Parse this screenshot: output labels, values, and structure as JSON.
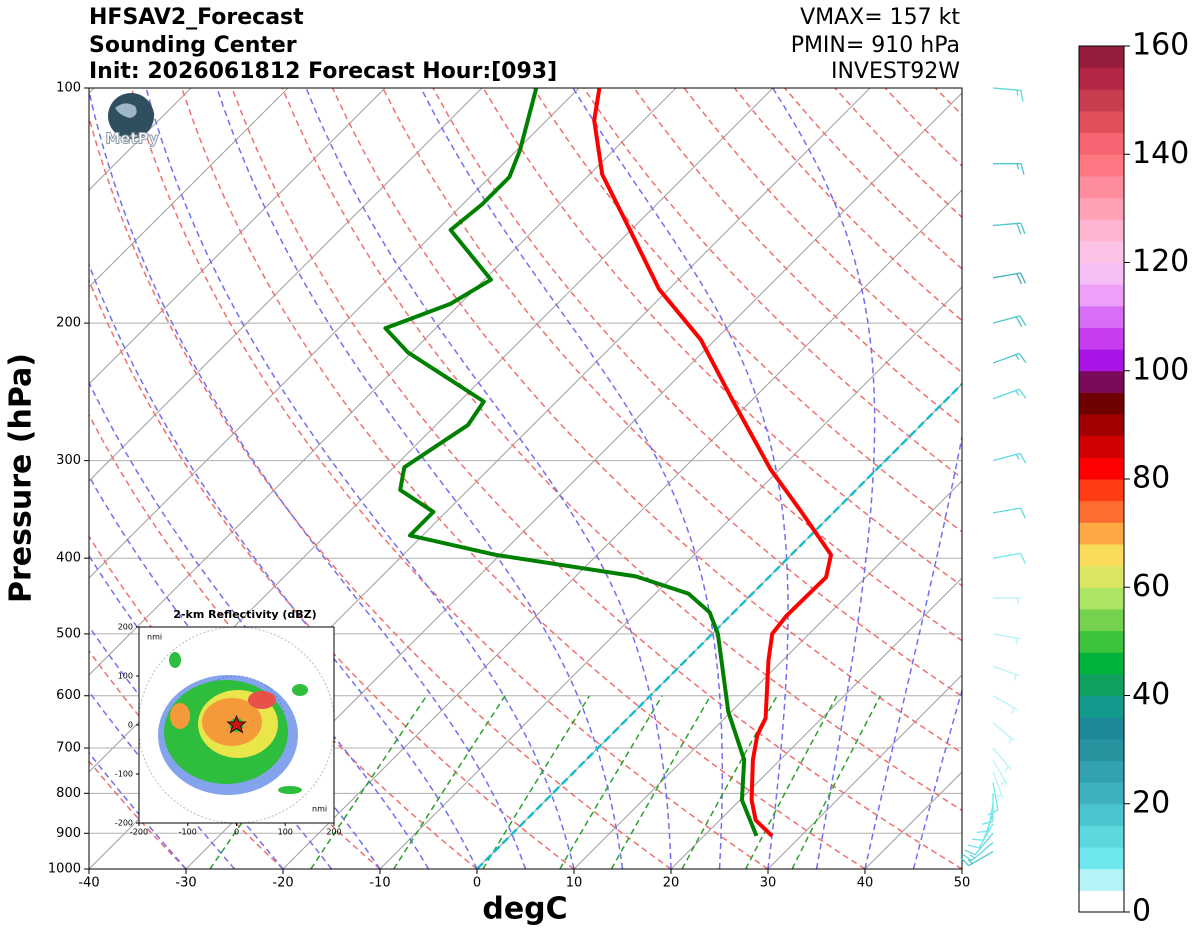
{
  "chart_data": {
    "type": "skewt",
    "title": [
      "HFSAV2_Forecast",
      "Sounding Center",
      "Init: 2026061812 Forecast Hour:[093]"
    ],
    "annotations": [
      "VMAX= 157 kt",
      "PMIN= 910 hPa",
      "INVEST92W"
    ],
    "annotation_color": "#a52a2a",
    "xlabel": "degC",
    "ylabel": "Pressure (hPa)",
    "logo": "MetPy",
    "xlim": [
      -40,
      50
    ],
    "ylim": [
      1000,
      100
    ],
    "log_y": true,
    "skew": 45,
    "xticks": [
      -40,
      -30,
      -20,
      -10,
      0,
      10,
      20,
      30,
      40,
      50
    ],
    "yticks": [
      100,
      200,
      300,
      400,
      500,
      600,
      700,
      800,
      900,
      1000
    ],
    "grid": true,
    "series": [
      {
        "color": "#ff0000",
        "pressure": [
          907,
          866,
          816,
          725,
          674,
          641,
          540,
          500,
          474,
          423,
          396,
          347,
          308,
          251,
          210,
          181,
          152,
          129,
          110,
          100
        ],
        "values": [
          27.0,
          23.7,
          21.2,
          17.2,
          15.1,
          14.2,
          8.5,
          6.2,
          5.8,
          5.9,
          4.1,
          -3.7,
          -10.9,
          -22.0,
          -31.5,
          -41.0,
          -50.1,
          -58.7,
          -65.1,
          -67.9
        ]
      },
      {
        "color": "#008000",
        "pressure": [
          907,
          816,
          725,
          629,
          500,
          469,
          444,
          422,
          396,
          374,
          349,
          327,
          306,
          270,
          252,
          218,
          203,
          189,
          176,
          152,
          141,
          130,
          120,
          100
        ],
        "values": [
          25.4,
          20.2,
          16.3,
          9.7,
          0.6,
          -2.5,
          -6.6,
          -13.8,
          -30.5,
          -41.3,
          -41.3,
          -47.0,
          -48.9,
          -46.7,
          -47.5,
          -60.4,
          -65.2,
          -61.0,
          -59.3,
          -68.6,
          -68.0,
          -68.0,
          -69.7,
          -74.4
        ]
      }
    ],
    "isotherms": [
      -130,
      -120,
      -110,
      -100,
      -90,
      -80,
      -70,
      -60,
      -50,
      -40,
      -30,
      -20,
      -10,
      0,
      10,
      20,
      30,
      40,
      50
    ],
    "isotherm_color": "#a0a0a0",
    "highlight_isotherm": 0,
    "highlight_color": "#17becf",
    "dry_adiabats": [
      -30,
      -20,
      -10,
      0,
      10,
      20,
      30,
      40,
      50,
      60,
      70,
      80,
      90,
      100,
      110,
      120,
      130,
      140,
      150,
      160,
      170,
      180,
      190,
      200
    ],
    "dry_adiabat_color": "#f07070",
    "moist_adiabats": [
      -30,
      -25,
      -20,
      -15,
      -10,
      -5,
      0,
      5,
      10,
      15,
      20,
      25,
      30,
      35,
      40,
      45
    ],
    "moist_adiabat_color": "#7070f0",
    "mixing_ratios": [
      0.0004,
      0.001,
      0.002,
      0.004,
      0.007,
      0.01,
      0.016,
      0.024,
      0.032
    ],
    "mixing_ratio_top": 600,
    "mixing_ratio_color": "#2ca02c",
    "winds": {
      "pressure": [
        950,
        925,
        900,
        875,
        850,
        825,
        800,
        775,
        750,
        725,
        700,
        650,
        600,
        550,
        500,
        450,
        400,
        350,
        300,
        250,
        225,
        200,
        175,
        150,
        125,
        100
      ],
      "speed": [
        16,
        14,
        12,
        10,
        9,
        9,
        8,
        8,
        7,
        7,
        6,
        5,
        5,
        4,
        5,
        6,
        9,
        12,
        14,
        15,
        17,
        19,
        20,
        19,
        16,
        14
      ],
      "direction": [
        240,
        230,
        220,
        210,
        200,
        190,
        180,
        170,
        160,
        150,
        140,
        130,
        120,
        110,
        100,
        90,
        80,
        80,
        75,
        70,
        70,
        75,
        80,
        85,
        90,
        95
      ]
    },
    "colorbar": {
      "lim": [
        0,
        160
      ],
      "ticks": [
        0,
        20,
        40,
        60,
        80,
        100,
        120,
        140,
        160
      ],
      "levels": [
        0,
        4,
        8,
        12,
        16,
        20,
        24,
        28,
        32,
        36,
        40,
        44,
        48,
        52,
        56,
        60,
        64,
        68,
        72,
        76,
        80,
        84,
        88,
        92,
        96,
        100,
        104,
        108,
        112,
        116,
        120,
        124,
        128,
        132,
        136,
        140,
        144,
        148,
        152,
        156,
        160
      ],
      "colors": [
        "#ffffff",
        "#b4f4f6",
        "#6ee8ee",
        "#5cd8de",
        "#4cc6ce",
        "#3eb2bc",
        "#32a2ae",
        "#26949e",
        "#1c8898",
        "#149a8c",
        "#10a060",
        "#00b43c",
        "#3cc43c",
        "#74d24e",
        "#ace464",
        "#dce664",
        "#f8dc5a",
        "#fca844",
        "#fc6e30",
        "#ff3c14",
        "#ff0000",
        "#d20000",
        "#a00000",
        "#700000",
        "#7a0a5a",
        "#aa14e6",
        "#c83cf0",
        "#d86ef6",
        "#eea0f8",
        "#f5bef5",
        "#fcc3e6",
        "#ffb4d2",
        "#ffa0b4",
        "#ff8c9c",
        "#ff7882",
        "#f56470",
        "#e1505a",
        "#c83c50",
        "#b42846",
        "#961e3c"
      ]
    },
    "inset": {
      "title": "2-km Reflectivity (dBZ)",
      "unit": "nmi",
      "xlim": [
        -200,
        200
      ],
      "ylim": [
        -200,
        200
      ],
      "xticks": [
        -200,
        -100,
        0,
        100,
        200
      ],
      "yticks": [
        -200,
        -100,
        0,
        100,
        200
      ]
    }
  }
}
